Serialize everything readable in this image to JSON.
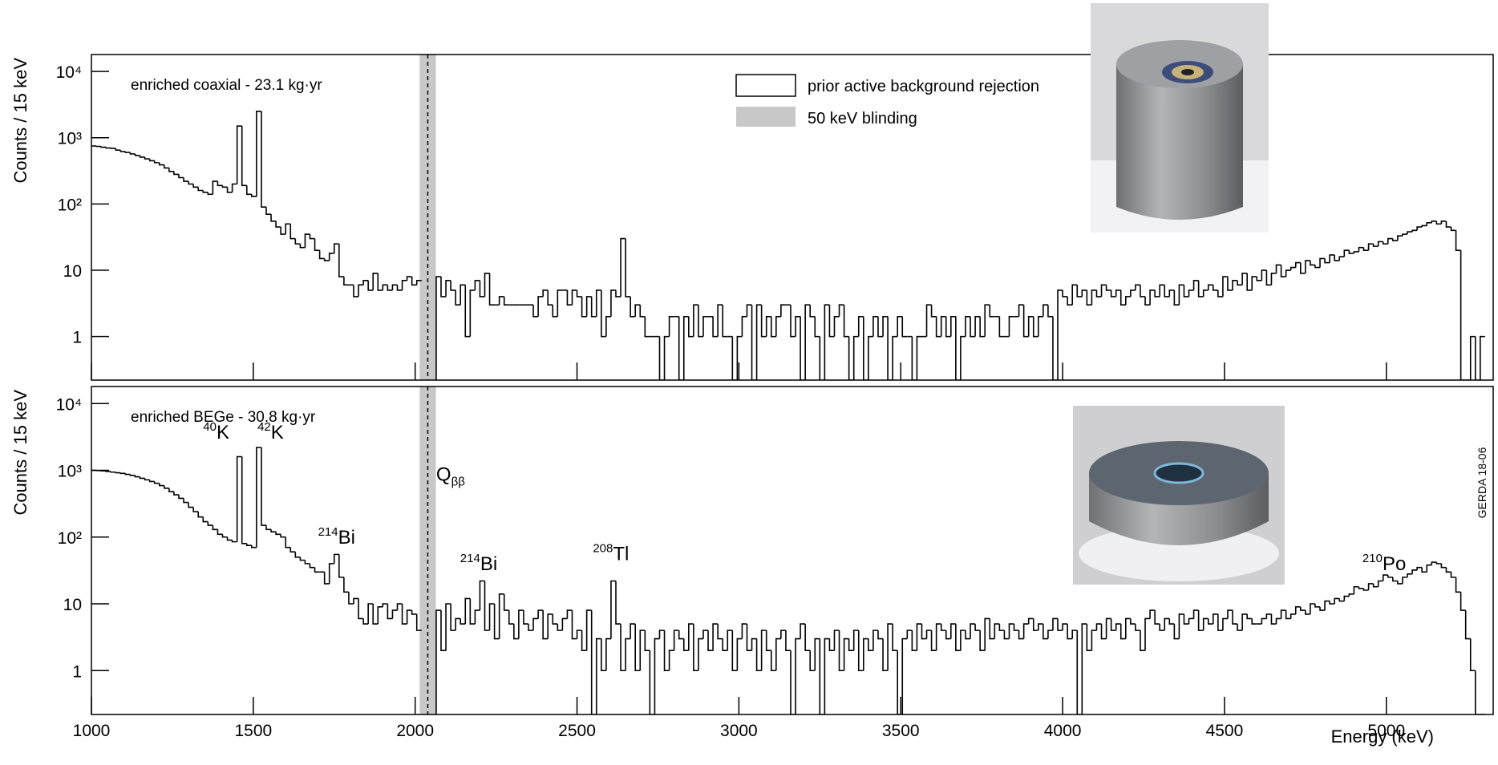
{
  "chart_data": {
    "type": "histogram",
    "xlabel": "Energy (keV)",
    "ylabel": "Counts / 15 keV",
    "log_y": true,
    "xlim": [
      1000,
      5330
    ],
    "xticks": [
      1000,
      1500,
      2000,
      2500,
      3000,
      3500,
      4000,
      4500,
      5000
    ],
    "ylim": [
      0.22,
      18000
    ],
    "yticks": [
      1,
      10,
      {
        "value": 100,
        "label": "10²"
      },
      {
        "value": 1000,
        "label": "10³"
      },
      {
        "value": 10000,
        "label": "10⁴"
      }
    ],
    "blinding_range": [
      2014,
      2064
    ],
    "blinding_color": "#c8c8c8",
    "q_value": 2039,
    "q_label": {
      "text": "Q",
      "sub": "ββ",
      "x": 2065,
      "y": 700
    },
    "legend": [
      {
        "name": "prior active background rejection",
        "color": "#000000"
      },
      {
        "name": "50 keV blinding",
        "color": "#c8c8c8"
      }
    ],
    "bins": [
      1000,
      1015,
      1030,
      1045,
      1060,
      1075,
      1090,
      1105,
      1120,
      1135,
      1150,
      1165,
      1180,
      1195,
      1210,
      1225,
      1240,
      1255,
      1270,
      1285,
      1300,
      1315,
      1330,
      1345,
      1360,
      1375,
      1390,
      1405,
      1420,
      1435,
      1450,
      1465,
      1480,
      1495,
      1510,
      1525,
      1540,
      1555,
      1570,
      1585,
      1600,
      1615,
      1630,
      1645,
      1660,
      1675,
      1690,
      1705,
      1720,
      1735,
      1750,
      1765,
      1780,
      1795,
      1810,
      1825,
      1840,
      1855,
      1870,
      1885,
      1900,
      1915,
      1930,
      1945,
      1960,
      1975,
      1990,
      2005,
      2020,
      2035,
      2050,
      2065,
      2080,
      2095,
      2110,
      2125,
      2140,
      2155,
      2170,
      2185,
      2200,
      2215,
      2230,
      2245,
      2260,
      2275,
      2290,
      2305,
      2320,
      2335,
      2350,
      2365,
      2380,
      2395,
      2410,
      2425,
      2440,
      2455,
      2470,
      2485,
      2500,
      2515,
      2530,
      2545,
      2560,
      2575,
      2590,
      2605,
      2620,
      2635,
      2650,
      2665,
      2680,
      2695,
      2710,
      2725,
      2740,
      2755,
      2770,
      2785,
      2800,
      2815,
      2830,
      2845,
      2860,
      2875,
      2890,
      2905,
      2920,
      2935,
      2950,
      2965,
      2980,
      2995,
      3010,
      3025,
      3040,
      3055,
      3070,
      3085,
      3100,
      3115,
      3130,
      3145,
      3160,
      3175,
      3190,
      3205,
      3220,
      3235,
      3250,
      3265,
      3280,
      3295,
      3310,
      3325,
      3340,
      3355,
      3370,
      3385,
      3400,
      3415,
      3430,
      3445,
      3460,
      3475,
      3490,
      3505,
      3520,
      3535,
      3550,
      3565,
      3580,
      3595,
      3610,
      3625,
      3640,
      3655,
      3670,
      3685,
      3700,
      3715,
      3730,
      3745,
      3760,
      3775,
      3790,
      3805,
      3820,
      3835,
      3850,
      3865,
      3880,
      3895,
      3910,
      3925,
      3940,
      3955,
      3970,
      3985,
      4000,
      4015,
      4030,
      4045,
      4060,
      4075,
      4090,
      4105,
      4120,
      4135,
      4150,
      4165,
      4180,
      4195,
      4210,
      4225,
      4240,
      4255,
      4270,
      4285,
      4300,
      4315,
      4330,
      4345,
      4360,
      4375,
      4390,
      4405,
      4420,
      4435,
      4450,
      4465,
      4480,
      4495,
      4510,
      4525,
      4540,
      4555,
      4570,
      4585,
      4600,
      4615,
      4630,
      4645,
      4660,
      4675,
      4690,
      4705,
      4720,
      4735,
      4750,
      4765,
      4780,
      4795,
      4810,
      4825,
      4840,
      4855,
      4870,
      4885,
      4900,
      4915,
      4930,
      4945,
      4960,
      4975,
      4990,
      5005,
      5020,
      5035,
      5050,
      5065,
      5080,
      5095,
      5110,
      5125,
      5140,
      5155,
      5170,
      5185,
      5200,
      5215,
      5230,
      5245,
      5260,
      5275,
      5290,
      5305
    ],
    "series": [
      {
        "name": "enriched coaxial - 23.1 kg·yr",
        "color": "#000000",
        "values": [
          750,
          740,
          720,
          700,
          690,
          650,
          620,
          600,
          570,
          540,
          510,
          480,
          450,
          420,
          390,
          350,
          310,
          280,
          250,
          220,
          200,
          180,
          160,
          150,
          140,
          220,
          190,
          180,
          150,
          200,
          1500,
          190,
          140,
          130,
          2500,
          90,
          70,
          55,
          45,
          35,
          50,
          30,
          25,
          22,
          35,
          30,
          20,
          15,
          14,
          18,
          25,
          8,
          6,
          6,
          4,
          6,
          7,
          5,
          9,
          5,
          6,
          5,
          6,
          5,
          7,
          8,
          6,
          7,
          null,
          null,
          null,
          8,
          4,
          7,
          5,
          3,
          6,
          1,
          5,
          7,
          4,
          9,
          3,
          3,
          4,
          3,
          3,
          3,
          3,
          3,
          3,
          2,
          4,
          5,
          3,
          2,
          5,
          5,
          3,
          5,
          4,
          2,
          4,
          2,
          5,
          1,
          2,
          5,
          4,
          30,
          4,
          2,
          3,
          2,
          1,
          1,
          1,
          0,
          1,
          2,
          2,
          0,
          2,
          1,
          3,
          1,
          2,
          2,
          1,
          3,
          1,
          1,
          0,
          1,
          2,
          3,
          0,
          3,
          1,
          2,
          1,
          2,
          3,
          3,
          1,
          2,
          0,
          3,
          2,
          1,
          0,
          3,
          1,
          2,
          3,
          1,
          0,
          1,
          2,
          0,
          1,
          2,
          1,
          2,
          0,
          1,
          2,
          1,
          1,
          0,
          1,
          1,
          3,
          2,
          1,
          2,
          1,
          2,
          0,
          1,
          2,
          1,
          2,
          1,
          3,
          2,
          2,
          1,
          1,
          2,
          2,
          3,
          1,
          2,
          1,
          2,
          3,
          2,
          0,
          5,
          4,
          3,
          6,
          4,
          5,
          3,
          5,
          4,
          6,
          5,
          4,
          5,
          3,
          4,
          5,
          6,
          4,
          3,
          5,
          4,
          6,
          4,
          5,
          3,
          6,
          4,
          5,
          7,
          4,
          5,
          6,
          5,
          4,
          8,
          5,
          7,
          6,
          9,
          5,
          8,
          7,
          10,
          6,
          9,
          12,
          8,
          10,
          11,
          13,
          9,
          14,
          12,
          11,
          15,
          13,
          17,
          14,
          16,
          20,
          18,
          19,
          22,
          20,
          25,
          23,
          27,
          25,
          30,
          28,
          33,
          35,
          38,
          40,
          45,
          47,
          52,
          55,
          50,
          55,
          45,
          40,
          20,
          0,
          0,
          1,
          0,
          1
        ]
      },
      {
        "name": "enriched BEGe - 30.8 kg·yr",
        "color": "#000000",
        "values": [
          1000,
          990,
          980,
          960,
          940,
          920,
          900,
          870,
          840,
          800,
          760,
          720,
          680,
          640,
          590,
          540,
          480,
          430,
          380,
          330,
          280,
          240,
          200,
          170,
          150,
          130,
          110,
          100,
          90,
          85,
          1600,
          80,
          75,
          70,
          2200,
          150,
          130,
          120,
          110,
          100,
          70,
          60,
          50,
          45,
          40,
          35,
          30,
          30,
          20,
          40,
          55,
          25,
          15,
          10,
          12,
          6,
          5,
          10,
          5,
          9,
          10,
          6,
          8,
          10,
          5,
          8,
          7,
          4,
          null,
          null,
          null,
          8,
          2,
          10,
          4,
          6,
          5,
          12,
          5,
          8,
          22,
          4,
          10,
          3,
          14,
          8,
          5,
          3,
          8,
          5,
          4,
          6,
          8,
          3,
          7,
          5,
          4,
          6,
          8,
          3,
          4,
          2,
          8,
          0,
          3,
          1,
          3,
          22,
          5,
          1,
          3,
          5,
          1,
          4,
          2,
          0,
          3,
          4,
          1,
          2,
          4,
          3,
          2,
          5,
          1,
          3,
          4,
          2,
          5,
          3,
          2,
          4,
          1,
          3,
          5,
          2,
          3,
          1,
          4,
          2,
          1,
          3,
          4,
          2,
          0,
          3,
          5,
          2,
          1,
          3,
          0,
          3,
          2,
          4,
          1,
          3,
          2,
          4,
          1,
          3,
          2,
          4,
          3,
          1,
          5,
          2,
          0,
          3,
          4,
          2,
          5,
          3,
          4,
          2,
          5,
          4,
          3,
          5,
          2,
          4,
          3,
          5,
          4,
          2,
          6,
          3,
          5,
          4,
          3,
          5,
          4,
          3,
          5,
          6,
          4,
          5,
          3,
          4,
          6,
          4,
          5,
          3,
          4,
          0,
          5,
          2,
          4,
          5,
          3,
          6,
          4,
          5,
          3,
          6,
          5,
          4,
          2,
          6,
          8,
          5,
          4,
          6,
          5,
          3,
          7,
          5,
          6,
          8,
          4,
          6,
          5,
          7,
          4,
          6,
          8,
          5,
          4,
          7,
          6,
          5,
          5,
          6,
          7,
          5,
          6,
          8,
          6,
          7,
          9,
          8,
          7,
          10,
          9,
          8,
          11,
          10,
          12,
          11,
          13,
          14,
          18,
          17,
          16,
          20,
          18,
          22,
          27,
          25,
          22,
          20,
          25,
          28,
          32,
          35,
          30,
          38,
          42,
          40,
          35,
          30,
          25,
          15,
          8,
          3,
          1,
          0,
          0
        ]
      }
    ],
    "annotations": [
      {
        "mass": "40",
        "text": "K",
        "x": 1345,
        "y": 3000,
        "series": 1
      },
      {
        "mass": "42",
        "text": "K",
        "x": 1513,
        "y": 3000,
        "series": 1
      },
      {
        "mass": "214",
        "text": "Bi",
        "x": 1700,
        "y": 80,
        "series": 1
      },
      {
        "mass": "214",
        "text": "Bi",
        "x": 2139,
        "y": 32,
        "series": 1
      },
      {
        "mass": "208",
        "text": "Tl",
        "x": 2549,
        "y": 45,
        "series": 1
      },
      {
        "mass": "210",
        "text": "Po",
        "x": 4926,
        "y": 32,
        "series": 1
      }
    ]
  },
  "side_text": "GERDA 18-06"
}
